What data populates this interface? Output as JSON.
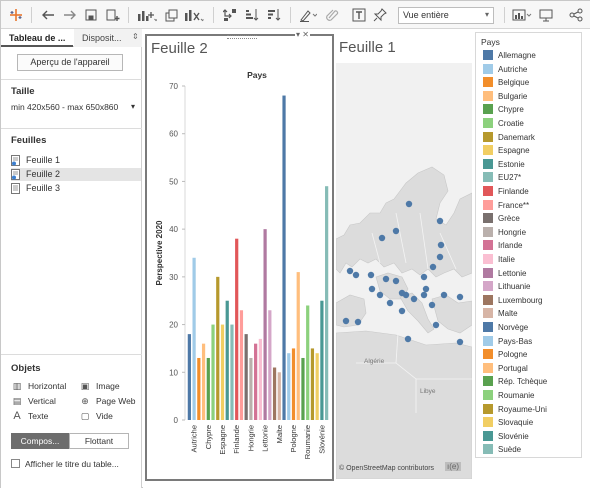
{
  "toolbar": {
    "view_select": "Vue entière",
    "icons": [
      "tableau-logo-icon",
      "undo-icon",
      "redo-icon",
      "save-icon",
      "new-datasource-icon",
      "new-worksheet-icon",
      "duplicate-icon",
      "clear-sheet-icon",
      "swap-axes-icon",
      "sort-ascending-icon",
      "sort-descending-icon",
      "highlight-icon",
      "group-icon",
      "label-icon",
      "pin-icon",
      "show-me-icon",
      "presentation-icon",
      "share-icon"
    ]
  },
  "sidebar": {
    "tabs": [
      {
        "label": "Tableau de ..."
      },
      {
        "label": "Disposit..."
      }
    ],
    "device_preview": "Aperçu de l'appareil",
    "size_title": "Taille",
    "size_value": "min 420x560 - max 650x860",
    "sheets_title": "Feuilles",
    "sheets": [
      {
        "label": "Feuille 1"
      },
      {
        "label": "Feuille 2"
      },
      {
        "label": "Feuille 3"
      }
    ],
    "objects_title": "Objets",
    "objects": [
      {
        "label": "Horizontal",
        "icon": "horizontal-icon"
      },
      {
        "label": "Image",
        "icon": "image-icon"
      },
      {
        "label": "Vertical",
        "icon": "vertical-icon"
      },
      {
        "label": "Page Web",
        "icon": "web-page-icon"
      },
      {
        "label": "Texte",
        "icon": "text-icon"
      },
      {
        "label": "Vide",
        "icon": "blank-icon"
      }
    ],
    "layout_buttons": {
      "compose": "Compos...",
      "float": "Flottant"
    },
    "show_title": "Afficher le titre du table..."
  },
  "map_sheet": {
    "title": "Feuille 1",
    "credit": "© OpenStreetMap contributors",
    "map_labels": [
      "Algérie",
      "Libye"
    ],
    "marker_color": "#4e79a7"
  },
  "legend": {
    "title": "Pays",
    "items": [
      {
        "label": "Allemagne",
        "color": "#4e79a7"
      },
      {
        "label": "Autriche",
        "color": "#a0cbe8"
      },
      {
        "label": "Belgique",
        "color": "#f28e2b"
      },
      {
        "label": "Bulgarie",
        "color": "#ffbe7d"
      },
      {
        "label": "Chypre",
        "color": "#59a14f"
      },
      {
        "label": "Croatie",
        "color": "#8cd17d"
      },
      {
        "label": "Danemark",
        "color": "#b6992d"
      },
      {
        "label": "Espagne",
        "color": "#f1ce63"
      },
      {
        "label": "Estonie",
        "color": "#499894"
      },
      {
        "label": "EU27*",
        "color": "#86bcb6"
      },
      {
        "label": "Finlande",
        "color": "#e15759"
      },
      {
        "label": "France**",
        "color": "#ff9d9a"
      },
      {
        "label": "Grèce",
        "color": "#79706e"
      },
      {
        "label": "Hongrie",
        "color": "#bab0ac"
      },
      {
        "label": "Irlande",
        "color": "#d37295"
      },
      {
        "label": "Italie",
        "color": "#fabfd2"
      },
      {
        "label": "Lettonie",
        "color": "#b07aa1"
      },
      {
        "label": "Lithuanie",
        "color": "#d4a6c8"
      },
      {
        "label": "Luxembourg",
        "color": "#9d7660"
      },
      {
        "label": "Malte",
        "color": "#d7b5a6"
      },
      {
        "label": "Norvège",
        "color": "#4e79a7"
      },
      {
        "label": "Pays-Bas",
        "color": "#a0cbe8"
      },
      {
        "label": "Pologne",
        "color": "#f28e2b"
      },
      {
        "label": "Portugal",
        "color": "#ffbe7d"
      },
      {
        "label": "Rép. Tchèque",
        "color": "#59a14f"
      },
      {
        "label": "Roumanie",
        "color": "#8cd17d"
      },
      {
        "label": "Royaume-Uni",
        "color": "#b6992d"
      },
      {
        "label": "Slovaquie",
        "color": "#f1ce63"
      },
      {
        "label": "Slovénie",
        "color": "#499894"
      },
      {
        "label": "Suède",
        "color": "#86bcb6"
      }
    ]
  },
  "chart_sheet": {
    "title": "Feuille 2"
  },
  "chart_data": {
    "type": "bar",
    "title": "Pays",
    "xlabel": "",
    "ylabel": "Perspective 2020",
    "ylim": [
      0,
      70
    ],
    "yticks": [
      0,
      10,
      20,
      30,
      40,
      50,
      60,
      70
    ],
    "grid": false,
    "shown_tick_labels": [
      "Autriche",
      "Chypre",
      "Espagne",
      "Finlande",
      "Hongrie",
      "Lettonie",
      "Malte",
      "Pologne",
      "Roumanie",
      "Slovénie"
    ],
    "categories": [
      "Allemagne",
      "Autriche",
      "Belgique",
      "Bulgarie",
      "Chypre",
      "Croatie",
      "Danemark",
      "Espagne",
      "Estonie",
      "EU27*",
      "Finlande",
      "France**",
      "Grèce",
      "Hongrie",
      "Irlande",
      "Italie",
      "Lettonie",
      "Lithuanie",
      "Luxembourg",
      "Malte",
      "Norvège",
      "Pays-Bas",
      "Pologne",
      "Portugal",
      "Rép. Tchèque",
      "Roumanie",
      "Royaume-Uni",
      "Slovaquie",
      "Slovénie",
      "Suède"
    ],
    "values": [
      18,
      34,
      13,
      16,
      13,
      20,
      30,
      20,
      25,
      20,
      38,
      23,
      18,
      13,
      16,
      17,
      40,
      23,
      11,
      10,
      68,
      14,
      15,
      31,
      13,
      24,
      15,
      14,
      25,
      49
    ]
  }
}
